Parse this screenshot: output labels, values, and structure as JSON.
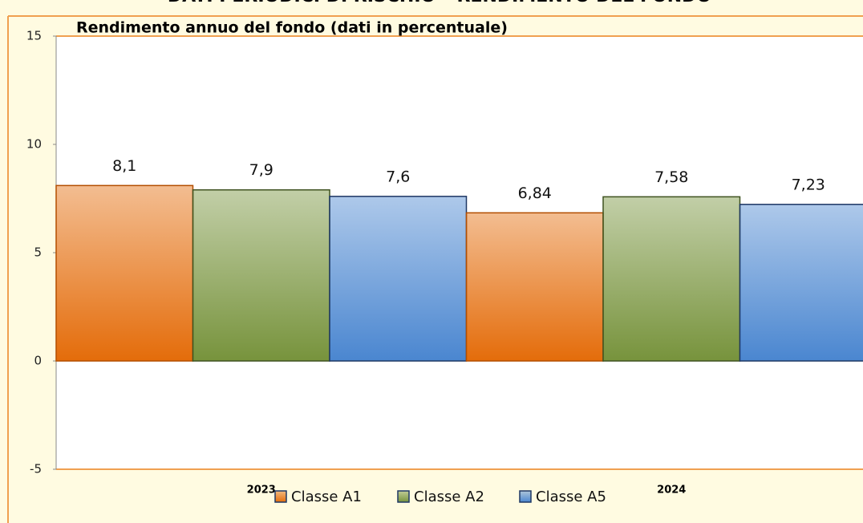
{
  "chart_data": {
    "type": "bar",
    "page_title": "DATI PERIODICI DI RISCHIO – RENDIMENTO DEL FONDO",
    "title": "Rendimento annuo del fondo (dati in percentuale)",
    "categories": [
      "2023",
      "2024"
    ],
    "series": [
      {
        "name": "Classe A1",
        "color": "#e46c0a",
        "values": [
          8.1,
          6.84
        ],
        "value_labels": [
          "8,1",
          "6,84"
        ]
      },
      {
        "name": "Classe A2",
        "color": "#77933c",
        "values": [
          7.9,
          7.58
        ],
        "value_labels": [
          "7,9",
          "7,58"
        ]
      },
      {
        "name": "Classe A5",
        "color": "#4a86d0",
        "values": [
          7.6,
          7.23
        ],
        "value_labels": [
          "7,6",
          "7,23"
        ]
      }
    ],
    "ylim": [
      -5,
      15
    ],
    "yticks": [
      15,
      10,
      5,
      0,
      -5
    ],
    "grid": false
  }
}
